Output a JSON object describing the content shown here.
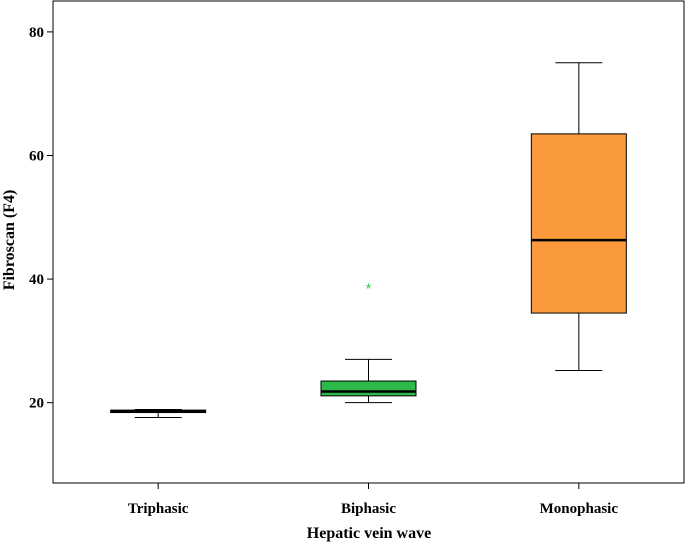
{
  "chart_data": {
    "type": "box",
    "title": "",
    "xlabel": "Hepatic vein wave",
    "ylabel": "Fibroscan (F4)",
    "ylim": [
      7,
      85
    ],
    "yticks": [
      20,
      40,
      60,
      80
    ],
    "grid": false,
    "legend": "none",
    "categories": [
      "Triphasic",
      "Biphasic",
      "Monophasic"
    ],
    "boxes": [
      {
        "category": "Triphasic",
        "min": 17.6,
        "q1": 18.4,
        "median": 18.6,
        "q3": 18.8,
        "max": 18.9,
        "outliers": [],
        "color": "#1a1a1a"
      },
      {
        "category": "Biphasic",
        "min": 20.0,
        "q1": 21.1,
        "median": 21.8,
        "q3": 23.5,
        "max": 27.0,
        "outliers": [
          39.0
        ],
        "color": "#2db84a"
      },
      {
        "category": "Monophasic",
        "min": 25.2,
        "q1": 34.5,
        "median": 46.3,
        "q3": 63.5,
        "max": 75.0,
        "outliers": [],
        "color": "#fb9a3c"
      }
    ],
    "outlier_marker": "*",
    "outlier_color": "#3ec94f"
  }
}
